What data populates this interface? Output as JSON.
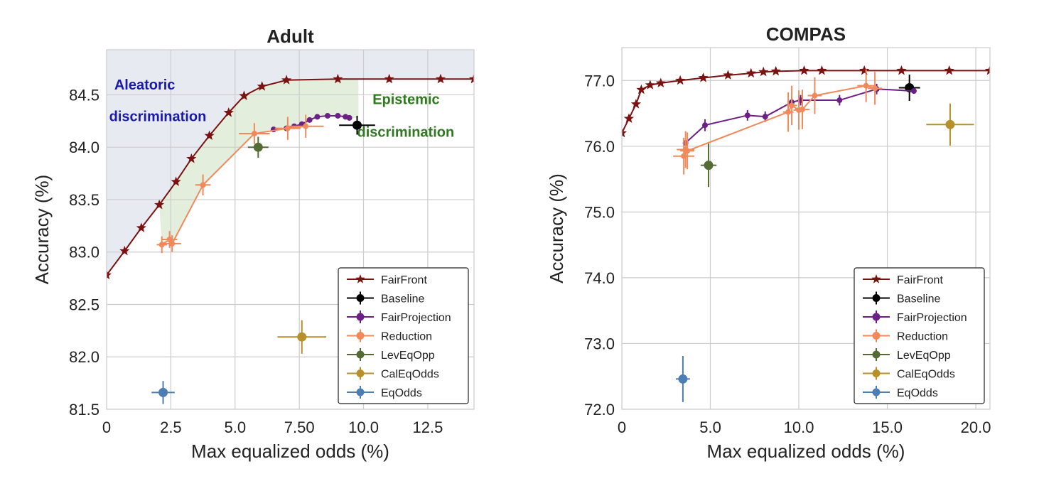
{
  "chart_data": [
    {
      "type": "scatter",
      "title": "Adult",
      "xlabel": "Max equalized odds (%)",
      "ylabel": "Accuracy (%)",
      "xlim": [
        0,
        14.3
      ],
      "ylim": [
        81.5,
        84.93
      ],
      "xticks": [
        0,
        2.5,
        5,
        7.5,
        10,
        12.5
      ],
      "xtick_labels": [
        "0",
        "2.5",
        "5.0",
        "7.50",
        "10.0",
        "12.5"
      ],
      "yticks": [
        81.5,
        82.0,
        82.5,
        83.0,
        83.5,
        84.0,
        84.5
      ],
      "ytick_labels": [
        "81.5",
        "82.0",
        "82.5",
        "83.0",
        "83.5",
        "84.0",
        "84.5"
      ],
      "grid": true,
      "legend_position": "bottom-right",
      "annotations": [
        {
          "text": "Aleatoric",
          "x": 0.3,
          "y": 84.55,
          "color": "#1a1aa8"
        },
        {
          "text": "discrimination",
          "x": 0.1,
          "y": 84.25,
          "color": "#1a1aa8"
        },
        {
          "text": "Epistemic",
          "x": 10.35,
          "y": 84.41,
          "color": "#2e7a1e"
        },
        {
          "text": "discrimination",
          "x": 9.75,
          "y": 84.1,
          "color": "#2e7a1e"
        }
      ],
      "series": [
        {
          "name": "FairFront",
          "color": "#7b1212",
          "marker": "star",
          "x": [
            0,
            0.7,
            1.35,
            2.05,
            2.7,
            3.3,
            4.0,
            4.75,
            5.35,
            6.05,
            7.0,
            9.0,
            11.0,
            13.0,
            14.3
          ],
          "y": [
            82.78,
            83.01,
            83.23,
            83.45,
            83.67,
            83.89,
            84.11,
            84.33,
            84.49,
            84.58,
            84.64,
            84.65,
            84.65,
            84.65,
            84.65
          ]
        },
        {
          "name": "Baseline",
          "color": "#000000",
          "marker": "circle",
          "x": [
            9.75
          ],
          "y": [
            84.21
          ],
          "xerr": [
            0.7
          ],
          "yerr": [
            0.09
          ]
        },
        {
          "name": "FairProjection",
          "color": "#6c1f84",
          "marker": "circle",
          "x": [
            6.5,
            7.0,
            7.3,
            7.6,
            7.9,
            8.2,
            8.6,
            9.0,
            9.3,
            9.45
          ],
          "y": [
            84.17,
            84.18,
            84.2,
            84.22,
            84.26,
            84.29,
            84.3,
            84.3,
            84.29,
            84.28
          ]
        },
        {
          "name": "Reduction",
          "color": "#f08a5d",
          "marker": "circle",
          "x": [
            2.15,
            2.45,
            2.55,
            3.75,
            5.75,
            7.05,
            7.75
          ],
          "y": [
            83.07,
            83.12,
            83.08,
            83.64,
            84.13,
            84.18,
            84.2
          ],
          "xerr": [
            0.2,
            0.3,
            0.35,
            0.3,
            0.6,
            0.5,
            0.7
          ],
          "yerr": [
            0.08,
            0.08,
            0.08,
            0.1,
            0.1,
            0.11,
            0.11
          ]
        },
        {
          "name": "LevEqOpp",
          "color": "#556b35",
          "marker": "circle",
          "x": [
            5.9
          ],
          "y": [
            84.0
          ],
          "xerr": [
            0.4
          ],
          "yerr": [
            0.1
          ]
        },
        {
          "name": "CalEqOdds",
          "color": "#b8902a",
          "marker": "circle",
          "x": [
            7.6
          ],
          "y": [
            82.19
          ],
          "xerr": [
            0.95
          ],
          "yerr": [
            0.16
          ]
        },
        {
          "name": "EqOdds",
          "color": "#4d7eb3",
          "marker": "circle",
          "x": [
            2.2
          ],
          "y": [
            81.66
          ],
          "xerr": [
            0.45
          ],
          "yerr": [
            0.11
          ]
        }
      ]
    },
    {
      "type": "scatter",
      "title": "COMPAS",
      "xlabel": "Max equalized odds (%)",
      "ylabel": "Accuracy (%)",
      "xlim": [
        0,
        20.8
      ],
      "ylim": [
        72,
        77.5
      ],
      "xticks": [
        0,
        5,
        10,
        15,
        20
      ],
      "xtick_labels": [
        "0",
        "5.0",
        "10.0",
        "15.0",
        "20.0"
      ],
      "yticks": [
        72,
        73,
        74,
        75,
        76,
        77
      ],
      "ytick_labels": [
        "72.0",
        "73.0",
        "74.0",
        "75.0",
        "76.0",
        "77.0"
      ],
      "grid": true,
      "legend_position": "bottom-right",
      "series": [
        {
          "name": "FairFront",
          "color": "#7b1212",
          "marker": "star",
          "x": [
            0,
            0.4,
            0.8,
            1.1,
            1.6,
            2.2,
            3.3,
            4.6,
            6.0,
            7.3,
            8.0,
            8.7,
            10.3,
            11.3,
            13.7,
            15.8,
            18.5,
            20.8
          ],
          "y": [
            76.2,
            76.42,
            76.64,
            76.86,
            76.93,
            76.96,
            77.0,
            77.04,
            77.08,
            77.11,
            77.13,
            77.14,
            77.15,
            77.15,
            77.15,
            77.15,
            77.15,
            77.15
          ],
          "star_x": [
            0,
            0.4,
            0.8,
            1.1,
            1.6,
            2.2,
            3.3,
            4.6,
            6.0,
            7.3,
            8.0,
            8.7,
            10.3,
            11.3,
            13.7,
            15.8,
            18.5,
            20.8
          ]
        },
        {
          "name": "Baseline",
          "color": "#000000",
          "marker": "circle",
          "x": [
            16.25
          ],
          "y": [
            76.89
          ],
          "xerr": [
            0.6
          ],
          "yerr": [
            0.2
          ]
        },
        {
          "name": "FairProjection",
          "color": "#6c1f84",
          "marker": "circle",
          "x": [
            3.6,
            4.7,
            7.1,
            8.1,
            9.6,
            10.1,
            12.3,
            14.4,
            16.5
          ],
          "y": [
            76.05,
            76.32,
            76.47,
            76.45,
            76.67,
            76.7,
            76.7,
            76.87,
            76.84
          ],
          "yerr": [
            0,
            0.09,
            0.08,
            0.08,
            0.08,
            0.08,
            0.08,
            0.08,
            0
          ]
        },
        {
          "name": "Reduction",
          "color": "#f08a5d",
          "marker": "circle",
          "x": [
            3.5,
            3.6,
            3.7,
            9.4,
            9.6,
            10.0,
            10.2,
            10.9,
            13.8,
            14.3
          ],
          "y": [
            75.85,
            75.95,
            75.93,
            76.52,
            76.62,
            76.55,
            76.56,
            76.77,
            76.92,
            76.88
          ],
          "xerr": [
            0.6,
            0.5,
            0.4,
            0.3,
            0.3,
            0.3,
            0.4,
            0.4,
            0.5,
            0.4
          ],
          "yerr": [
            0.28,
            0.28,
            0.28,
            0.3,
            0.3,
            0.3,
            0.3,
            0.28,
            0.25,
            0.25
          ]
        },
        {
          "name": "LevEqOpp",
          "color": "#556b35",
          "marker": "circle",
          "x": [
            4.9
          ],
          "y": [
            75.71
          ],
          "xerr": [
            0.45
          ],
          "yerr": [
            0.33
          ]
        },
        {
          "name": "CalEqOdds",
          "color": "#b8902a",
          "marker": "circle",
          "x": [
            18.55
          ],
          "y": [
            76.33
          ],
          "xerr": [
            1.35
          ],
          "yerr": [
            0.32
          ]
        },
        {
          "name": "EqOdds",
          "color": "#4d7eb3",
          "marker": "circle",
          "x": [
            3.45
          ],
          "y": [
            72.46
          ],
          "xerr": [
            0.4
          ],
          "yerr": [
            0.35
          ]
        }
      ]
    }
  ]
}
